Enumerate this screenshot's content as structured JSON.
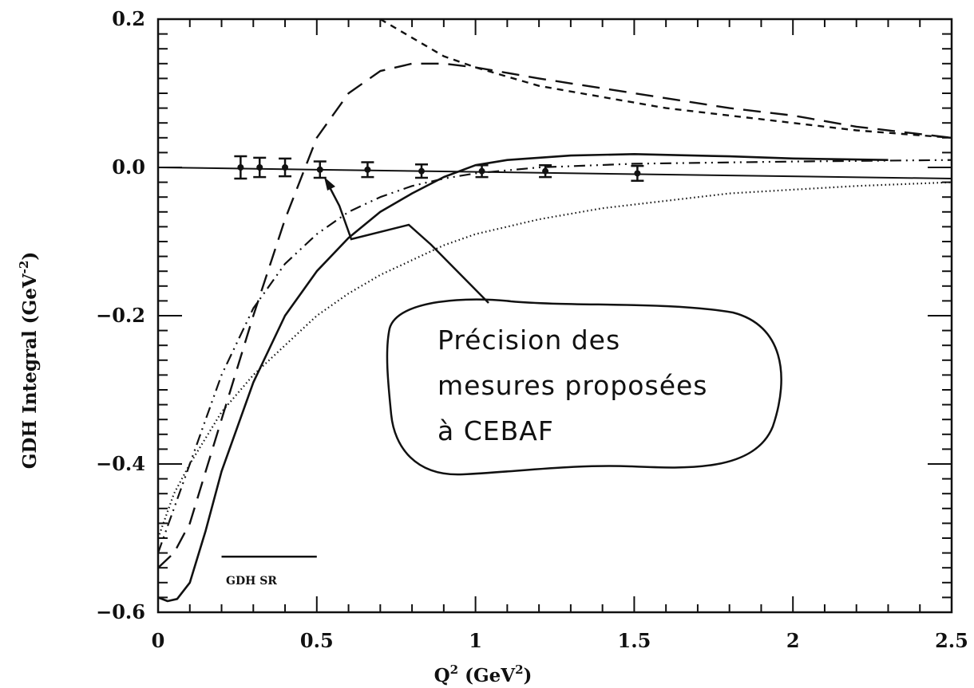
{
  "chart_data": {
    "type": "line",
    "title": "",
    "xlabel_text": "Q",
    "xlabel_sup": "2",
    "xlabel_unit": "(GeV",
    "xlabel_unit_sup": "2",
    "xlabel_close": ")",
    "ylabel_text": "GDH Integral (GeV",
    "ylabel_sup": "-2",
    "ylabel_close": ")",
    "xlim": [
      0,
      2.5
    ],
    "ylim": [
      -0.6,
      0.2
    ],
    "x_ticks": [
      0,
      0.5,
      1,
      1.5,
      2,
      2.5
    ],
    "x_tick_labels": [
      "0",
      "0.5",
      "1",
      "1.5",
      "2",
      "2.5"
    ],
    "y_ticks": [
      -0.6,
      -0.4,
      -0.2,
      0.0,
      0.2
    ],
    "y_tick_labels": [
      "−0.6",
      "−0.4",
      "−0.2",
      "0.0",
      "0.2"
    ],
    "grid": false,
    "series": [
      {
        "style": "solid-thick",
        "x": [
          0,
          0.03,
          0.06,
          0.1,
          0.15,
          0.2,
          0.3,
          0.4,
          0.5,
          0.6,
          0.7,
          0.8,
          0.9,
          1.0,
          1.1,
          1.3,
          1.5,
          1.8,
          2.0,
          2.3
        ],
        "y": [
          -0.58,
          -0.585,
          -0.582,
          -0.56,
          -0.49,
          -0.41,
          -0.29,
          -0.2,
          -0.14,
          -0.095,
          -0.06,
          -0.035,
          -0.013,
          0.003,
          0.01,
          0.016,
          0.018,
          0.015,
          0.012,
          0.01
        ]
      },
      {
        "style": "long-dash",
        "x": [
          0,
          0.05,
          0.1,
          0.15,
          0.2,
          0.3,
          0.4,
          0.5,
          0.6,
          0.7,
          0.8,
          0.9,
          1.0,
          1.2,
          1.5,
          1.8,
          2.0,
          2.2,
          2.5
        ],
        "y": [
          -0.54,
          -0.52,
          -0.48,
          -0.41,
          -0.34,
          -0.2,
          -0.07,
          0.04,
          0.1,
          0.13,
          0.14,
          0.14,
          0.135,
          0.12,
          0.1,
          0.08,
          0.07,
          0.055,
          0.04
        ]
      },
      {
        "style": "short-dash",
        "x": [
          0.7,
          0.8,
          0.9,
          1.0,
          1.2,
          1.4,
          1.6,
          1.8,
          2.0,
          2.2,
          2.5
        ],
        "y": [
          0.2,
          0.175,
          0.15,
          0.135,
          0.11,
          0.095,
          0.08,
          0.07,
          0.06,
          0.05,
          0.04
        ]
      },
      {
        "style": "dash-dot-dot",
        "x": [
          0,
          0.05,
          0.1,
          0.15,
          0.2,
          0.3,
          0.4,
          0.5,
          0.6,
          0.7,
          0.8,
          0.9,
          1.0,
          1.2,
          1.5,
          2.0,
          2.5
        ],
        "y": [
          -0.52,
          -0.46,
          -0.4,
          -0.34,
          -0.28,
          -0.19,
          -0.13,
          -0.09,
          -0.06,
          -0.04,
          -0.025,
          -0.015,
          -0.008,
          0.0,
          0.005,
          0.008,
          0.01
        ]
      },
      {
        "style": "dotted",
        "x": [
          0,
          0.05,
          0.1,
          0.2,
          0.3,
          0.4,
          0.5,
          0.6,
          0.7,
          0.8,
          0.9,
          1.0,
          1.2,
          1.4,
          1.6,
          1.8,
          2.0,
          2.2,
          2.5
        ],
        "y": [
          -0.5,
          -0.44,
          -0.4,
          -0.33,
          -0.28,
          -0.24,
          -0.2,
          -0.17,
          -0.145,
          -0.125,
          -0.105,
          -0.09,
          -0.07,
          -0.055,
          -0.045,
          -0.035,
          -0.03,
          -0.025,
          -0.02
        ]
      },
      {
        "style": "solid-thin",
        "x": [
          0,
          2.5
        ],
        "y": [
          0.0,
          -0.015
        ]
      }
    ],
    "data_points": {
      "x": [
        0.26,
        0.32,
        0.4,
        0.51,
        0.66,
        0.83,
        1.02,
        1.22,
        1.51
      ],
      "y": [
        0.0,
        0.0,
        0.0,
        -0.003,
        -0.003,
        -0.005,
        -0.005,
        -0.005,
        -0.008
      ],
      "err": [
        0.015,
        0.013,
        0.012,
        0.011,
        0.01,
        0.009,
        0.008,
        0.008,
        0.01
      ]
    },
    "legend": {
      "gdh_sr_label": "GDH SR",
      "gdh_sr_x": [
        0.2,
        0.5
      ],
      "gdh_sr_y": -0.525
    },
    "annotation": {
      "line1": "Précision des",
      "line2": "mesures proposées",
      "line3": "à CEBAF"
    }
  }
}
